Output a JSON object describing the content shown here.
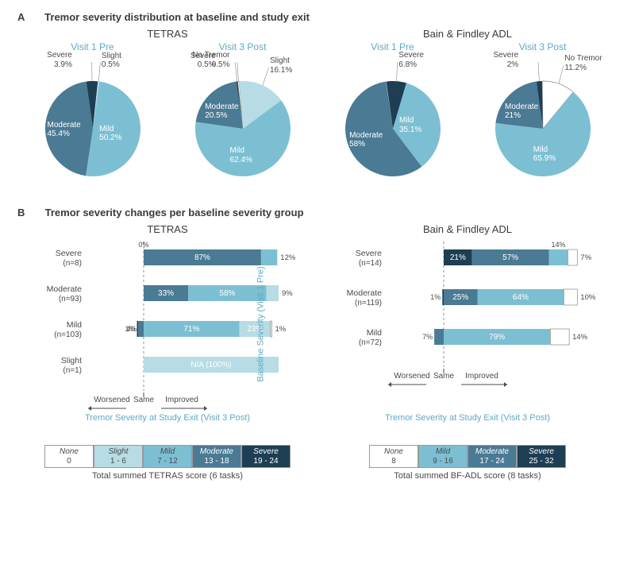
{
  "colors": {
    "none": "#ffffff",
    "slight": "#b7dce5",
    "mild": "#7cbfd3",
    "moderate": "#4a7a94",
    "severe": "#1d3e53",
    "accent": "#5fa8c4",
    "text": "#4a4a4a"
  },
  "panelA": {
    "tag": "A",
    "title": "Tremor severity distribution at baseline and study exit",
    "tetras": {
      "title": "TETRAS",
      "v1": {
        "label": "Visit 1 Pre",
        "slices": [
          {
            "name": "Severe",
            "pct": 3.9,
            "color": "severe"
          },
          {
            "name": "Slight",
            "pct": 0.5,
            "color": "slight"
          },
          {
            "name": "Mild",
            "pct": 50.2,
            "color": "mild"
          },
          {
            "name": "Moderate",
            "pct": 45.4,
            "color": "moderate"
          }
        ]
      },
      "v3": {
        "label": "Visit 3 Post",
        "slices": [
          {
            "name": "Severe",
            "pct": 0.5,
            "color": "severe"
          },
          {
            "name": "No Tremor",
            "pct": 0.5,
            "color": "none"
          },
          {
            "name": "Slight",
            "pct": 16.1,
            "color": "slight"
          },
          {
            "name": "Mild",
            "pct": 62.4,
            "color": "mild"
          },
          {
            "name": "Moderate",
            "pct": 20.5,
            "color": "moderate"
          }
        ]
      }
    },
    "bfadl": {
      "title": "Bain & Findley ADL",
      "v1": {
        "label": "Visit 1 Pre",
        "slices": [
          {
            "name": "Severe",
            "pct": 6.8,
            "color": "severe"
          },
          {
            "name": "Mild",
            "pct": 35.1,
            "color": "mild"
          },
          {
            "name": "Moderate",
            "pct": 58.0,
            "color": "moderate"
          }
        ]
      },
      "v3": {
        "label": "Visit 3 Post",
        "slices": [
          {
            "name": "Severe",
            "pct": 2.0,
            "color": "severe"
          },
          {
            "name": "No Tremor",
            "pct": 11.2,
            "color": "none"
          },
          {
            "name": "Mild",
            "pct": 65.9,
            "color": "mild"
          },
          {
            "name": "Moderate",
            "pct": 21.0,
            "color": "moderate"
          }
        ]
      }
    }
  },
  "panelB": {
    "tag": "B",
    "title": "Tremor severity changes per baseline severity group",
    "ylabel": "Baseline Severity (Visit 1 Pre)",
    "xlabel": "Tremor Severity at Study Exit (Visit 3 Post)",
    "dir_left": "Worsened",
    "dir_mid": "Same",
    "dir_right": "Improved",
    "tetras": {
      "title": "TETRAS",
      "rows": [
        {
          "label": "Severe",
          "n": 8,
          "anchor": "severe",
          "segs": [
            {
              "sev": "severe",
              "pct": 0,
              "hidden": true
            },
            {
              "sev": "moderate",
              "pct": 87
            },
            {
              "sev": "mild",
              "pct": 12
            }
          ]
        },
        {
          "label": "Moderate",
          "n": 93,
          "anchor": "moderate",
          "segs": [
            {
              "sev": "moderate",
              "pct": 33
            },
            {
              "sev": "mild",
              "pct": 58
            },
            {
              "sev": "slight",
              "pct": 9
            }
          ]
        },
        {
          "label": "Mild",
          "n": 103,
          "anchor": "mild",
          "left": [
            {
              "sev": "severe",
              "pct": 1
            },
            {
              "sev": "moderate",
              "pct": 4
            }
          ],
          "segs": [
            {
              "sev": "mild",
              "pct": 71
            },
            {
              "sev": "slight",
              "pct": 23
            },
            {
              "sev": "none",
              "pct": 1
            }
          ]
        },
        {
          "label": "Slight",
          "n": 1,
          "anchor": "slight",
          "segs": [
            {
              "sev": "slight",
              "pct": 100,
              "text": "N/A (100%)"
            }
          ]
        }
      ]
    },
    "bfadl": {
      "title": "Bain & Findley ADL",
      "rows": [
        {
          "label": "Severe",
          "n": 14,
          "anchor": "severe",
          "segs": [
            {
              "sev": "severe",
              "pct": 21
            },
            {
              "sev": "moderate",
              "pct": 57
            },
            {
              "sev": "mild",
              "pct": 14
            },
            {
              "sev": "none",
              "pct": 7
            }
          ]
        },
        {
          "label": "Moderate",
          "n": 119,
          "anchor": "moderate",
          "left": [
            {
              "sev": "severe",
              "pct": 1
            }
          ],
          "segs": [
            {
              "sev": "moderate",
              "pct": 25
            },
            {
              "sev": "mild",
              "pct": 64
            },
            {
              "sev": "none",
              "pct": 10
            }
          ]
        },
        {
          "label": "Mild",
          "n": 72,
          "anchor": "mild",
          "left": [
            {
              "sev": "moderate",
              "pct": 7
            }
          ],
          "segs": [
            {
              "sev": "mild",
              "pct": 79
            },
            {
              "sev": "none",
              "pct": 14
            }
          ]
        }
      ]
    }
  },
  "legends": {
    "tetras": {
      "cells": [
        {
          "name": "None",
          "range": "0",
          "color": "none"
        },
        {
          "name": "Slight",
          "range": "1 - 6",
          "color": "slight"
        },
        {
          "name": "Mild",
          "range": "7 - 12",
          "color": "mild"
        },
        {
          "name": "Moderate",
          "range": "13 - 18",
          "color": "moderate"
        },
        {
          "name": "Severe",
          "range": "19 - 24",
          "color": "severe"
        }
      ],
      "caption": "Total summed TETRAS score (6 tasks)"
    },
    "bfadl": {
      "cells": [
        {
          "name": "None",
          "range": "8",
          "color": "none"
        },
        {
          "name": "Mild",
          "range": "9 - 16",
          "color": "mild"
        },
        {
          "name": "Moderate",
          "range": "17 - 24",
          "color": "moderate"
        },
        {
          "name": "Severe",
          "range": "25 - 32",
          "color": "severe"
        }
      ],
      "caption": "Total summed BF-ADL score (8 tasks)"
    }
  }
}
